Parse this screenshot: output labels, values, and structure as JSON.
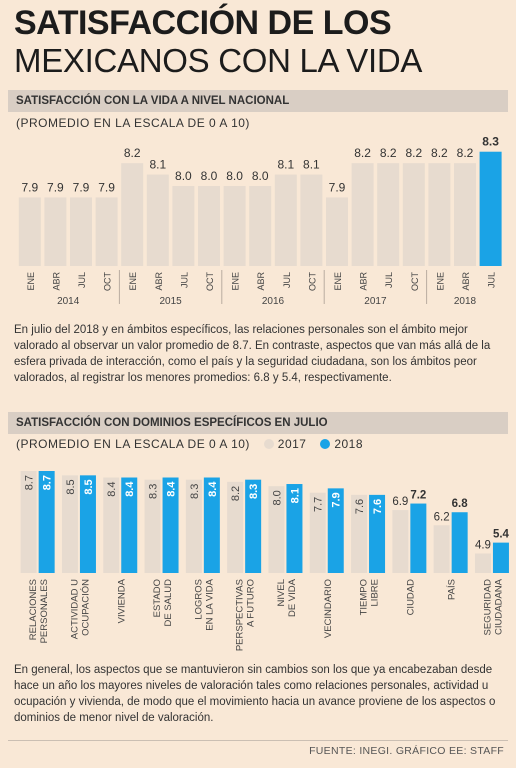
{
  "title": {
    "line1": "SATISFACCIÓN DE LOS",
    "line2": "MEXICANOS CON LA VIDA"
  },
  "section1": {
    "heading": "SATISFACCIÓN CON LA VIDA A NIVEL NACIONAL",
    "subtitle": "(PROMEDIO EN LA ESCALA DE 0 A 10)"
  },
  "paragraph1": "En julio del 2018 y en ámbitos específicos, las relaciones personales son el ámbito mejor valorado al observar un valor promedio de 8.7. En contraste, aspectos que van más allá de la esfera privada de interacción, como el país y la seguridad ciudadana, son los ámbitos peor valorados, al registrar los menores promedios: 6.8 y 5.4, respectivamente.",
  "section2": {
    "heading": "SATISFACCIÓN CON DOMINIOS ESPECÍFICOS EN JULIO",
    "subtitle": "(PROMEDIO EN LA ESCALA DE 0 A 10)",
    "legend": [
      "2017",
      "2018"
    ]
  },
  "paragraph2": "En general, los aspectos que se mantuvieron sin cambios son los que ya encabezaban desde hace un año los mayores niveles de valoración tales como relaciones personales, actividad u ocupación y vivienda, de modo que el movimiento hacia un avance proviene de los aspectos o dominios de menor nivel de valoración.",
  "footer": "FUENTE: INEGI. GRÁFICO EE: STAFF",
  "colors": {
    "bar_gray": "#e7dbcf",
    "bar_blue": "#1aa3e6",
    "background": "#f9e8d6"
  },
  "chart_data": [
    {
      "type": "bar",
      "categories": [
        "ENE",
        "ABR",
        "JUL",
        "OCT",
        "ENE",
        "ABR",
        "JUL",
        "OCT",
        "ENE",
        "ABR",
        "JUL",
        "OCT",
        "ENE",
        "ABR",
        "JUL",
        "OCT",
        "ENE",
        "ABR",
        "JUL"
      ],
      "year_groups": [
        {
          "year": "2014",
          "count": 4
        },
        {
          "year": "2015",
          "count": 4
        },
        {
          "year": "2016",
          "count": 4
        },
        {
          "year": "2017",
          "count": 4
        },
        {
          "year": "2018",
          "count": 3
        }
      ],
      "values": [
        7.9,
        7.9,
        7.9,
        7.9,
        8.2,
        8.1,
        8.0,
        8.0,
        8.0,
        8.0,
        8.1,
        8.1,
        7.9,
        8.2,
        8.2,
        8.2,
        8.2,
        8.2,
        8.3
      ],
      "labels": [
        "7.9",
        "7.9",
        "7.9",
        "7.9",
        "8.2",
        "8.1",
        "8.0",
        "8.0",
        "8.0",
        "8.0",
        "8.1",
        "8.1",
        "7.9",
        "8.2",
        "8.2",
        "8.2",
        "8.2",
        "8.2",
        "8.3"
      ],
      "highlight_index": 18,
      "ylim": [
        7.3,
        8.35
      ]
    },
    {
      "type": "bar",
      "categories": [
        [
          "RELACIONES",
          "PERSONALES"
        ],
        [
          "ACTIVIDAD U",
          "OCUPACIÓN"
        ],
        [
          "VIVIENDA"
        ],
        [
          "ESTADO",
          "DE SALUD"
        ],
        [
          "LOGROS",
          "EN LA VIDA"
        ],
        [
          "PERSPECTIVAS",
          "A FUTURO"
        ],
        [
          "NIVEL",
          "DE VIDA"
        ],
        [
          "VECINDARIO"
        ],
        [
          "TIEMPO",
          "LIBRE"
        ],
        [
          "CIUDAD"
        ],
        [
          "PAÍS"
        ],
        [
          "SEGURIDAD",
          "CIUDADANA"
        ]
      ],
      "series": [
        {
          "name": "2017",
          "values": [
            8.7,
            8.5,
            8.4,
            8.3,
            8.3,
            8.2,
            8.0,
            7.7,
            7.6,
            6.9,
            6.2,
            4.9
          ],
          "labels": [
            "8.7",
            "8.5",
            "8.4",
            "8.3",
            "8.3",
            "8.2",
            "8.0",
            "7.7",
            "7.6",
            "6.9",
            "6.2",
            "4.9"
          ]
        },
        {
          "name": "2018",
          "values": [
            8.7,
            8.5,
            8.4,
            8.4,
            8.4,
            8.3,
            8.1,
            7.9,
            7.6,
            7.2,
            6.8,
            5.4
          ],
          "labels": [
            "8.7",
            "8.5",
            "8.4",
            "8.4",
            "8.4",
            "8.3",
            "8.1",
            "7.9",
            "7.6",
            "7.2",
            "6.8",
            "5.4"
          ]
        }
      ],
      "ylim": [
        4.0,
        8.7
      ]
    }
  ]
}
